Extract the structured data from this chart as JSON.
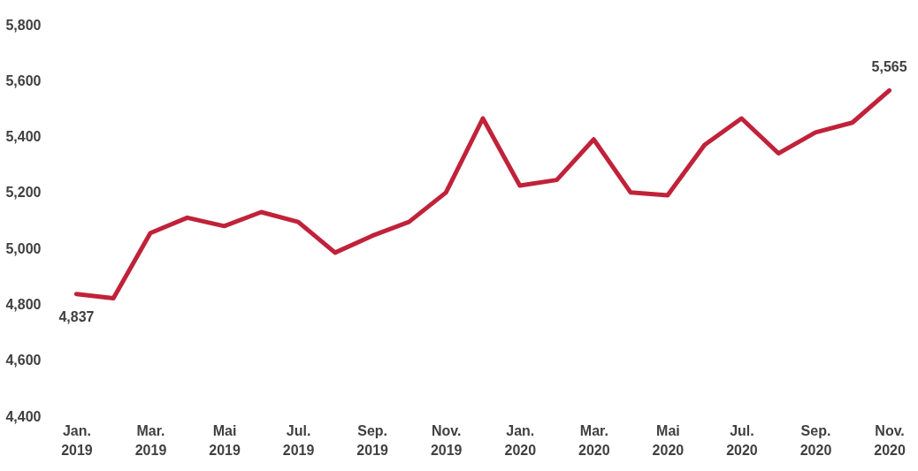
{
  "chart_data": {
    "type": "line",
    "categories": [
      "Jan. 2019",
      null,
      "Mar. 2019",
      null,
      "Mai 2019",
      null,
      "Jul. 2019",
      null,
      "Sep. 2019",
      null,
      "Nov. 2019",
      null,
      "Jan. 2020",
      null,
      "Mar. 2020",
      null,
      "Mai 2020",
      null,
      "Jul. 2020",
      null,
      "Sep. 2020",
      null,
      "Nov. 2020"
    ],
    "series": [
      {
        "color": "#c0223a",
        "values": [
          4837,
          4822,
          5055,
          5110,
          5080,
          5130,
          5095,
          4985,
          5045,
          5095,
          5200,
          5465,
          5225,
          5245,
          5390,
          5200,
          5190,
          5370,
          5465,
          5340,
          5415,
          5450,
          5565
        ],
        "value_labels": [
          "4,837",
          null,
          null,
          null,
          null,
          null,
          null,
          null,
          null,
          null,
          null,
          null,
          null,
          null,
          null,
          null,
          null,
          null,
          null,
          null,
          null,
          null,
          "5,565"
        ]
      }
    ],
    "ylim": [
      4400,
      5800
    ],
    "yticks": [
      {
        "value": 4400,
        "label": "4,400"
      },
      {
        "value": 4600,
        "label": "4,600"
      },
      {
        "value": 4800,
        "label": "4,800"
      },
      {
        "value": 5000,
        "label": "5,000"
      },
      {
        "value": 5200,
        "label": "5,200"
      },
      {
        "value": 5400,
        "label": "5,400"
      },
      {
        "value": 5600,
        "label": "5,600"
      },
      {
        "value": 5800,
        "label": "5,800"
      }
    ],
    "grid": false,
    "marker": "none",
    "line_style": "solid"
  }
}
